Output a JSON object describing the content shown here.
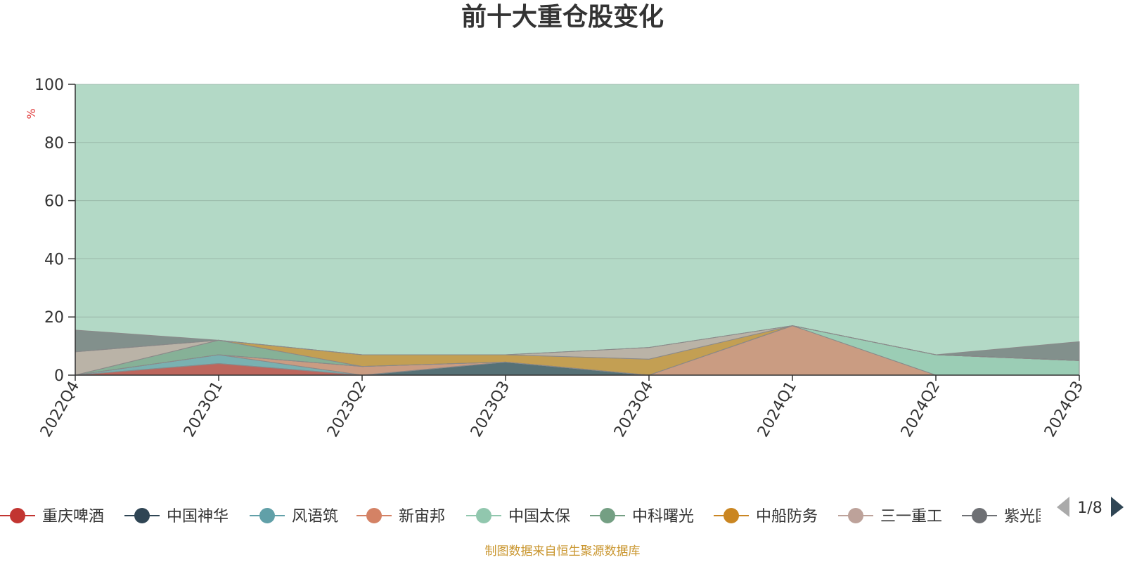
{
  "chart_data": {
    "type": "area",
    "title": "前十大重仓股变化",
    "ylabel": "%",
    "ylim": [
      0,
      100
    ],
    "yticks": [
      0,
      20,
      40,
      60,
      80,
      100
    ],
    "grid": true,
    "stacked": true,
    "categories": [
      "2022Q4",
      "2023Q1",
      "2023Q2",
      "2023Q3",
      "2023Q4",
      "2024Q1",
      "2024Q2",
      "2024Q3"
    ],
    "legend_position": "bottom",
    "series": [
      {
        "name": "重庆啤酒",
        "color": "#c23531",
        "values": [
          0,
          4,
          0,
          0,
          0,
          0,
          0,
          0
        ]
      },
      {
        "name": "中国神华",
        "color": "#2f4554",
        "values": [
          0,
          0,
          0,
          4.5,
          0,
          0,
          0,
          0
        ]
      },
      {
        "name": "风语筑",
        "color": "#61a0a8",
        "values": [
          0,
          3,
          0,
          0,
          0,
          0,
          0,
          0
        ]
      },
      {
        "name": "新宙邦",
        "color": "#d48265",
        "values": [
          0,
          0,
          3,
          0,
          0,
          17,
          0,
          0
        ]
      },
      {
        "name": "中国太保",
        "color": "#91c7ae",
        "values": [
          0,
          0,
          0,
          0,
          0,
          0,
          7,
          5
        ]
      },
      {
        "name": "中科曙光",
        "color": "#749f83",
        "values": [
          0,
          5,
          0,
          0,
          0,
          0,
          0,
          0
        ]
      },
      {
        "name": "中船防务",
        "color": "#ca8622",
        "values": [
          0,
          0,
          4,
          2.5,
          5.5,
          0,
          0,
          0
        ]
      },
      {
        "name": "三一重工",
        "color": "#bda29a",
        "values": [
          8,
          0,
          0,
          0,
          4,
          0,
          0,
          0
        ]
      },
      {
        "name": "紫光国微",
        "color": "#6e7074",
        "values": [
          7.5,
          0,
          0,
          0,
          0,
          0,
          0,
          6.5
        ]
      }
    ],
    "legend_page": "1/8"
  },
  "source_note": "制图数据来自恒生聚源数据库"
}
